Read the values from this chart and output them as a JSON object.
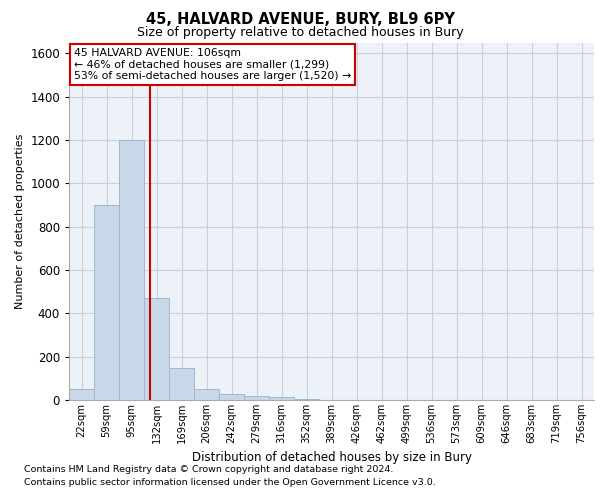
{
  "title1": "45, HALVARD AVENUE, BURY, BL9 6PY",
  "title2": "Size of property relative to detached houses in Bury",
  "xlabel": "Distribution of detached houses by size in Bury",
  "ylabel": "Number of detached properties",
  "bin_labels": [
    "22sqm",
    "59sqm",
    "95sqm",
    "132sqm",
    "169sqm",
    "206sqm",
    "242sqm",
    "279sqm",
    "316sqm",
    "352sqm",
    "389sqm",
    "426sqm",
    "462sqm",
    "499sqm",
    "536sqm",
    "573sqm",
    "609sqm",
    "646sqm",
    "683sqm",
    "719sqm",
    "756sqm"
  ],
  "bar_values": [
    50,
    900,
    1200,
    470,
    150,
    50,
    30,
    18,
    15,
    5,
    0,
    0,
    0,
    0,
    0,
    0,
    0,
    0,
    0,
    0,
    0
  ],
  "bar_color": "#c8d8e8",
  "bar_edge_color": "#a0b8cc",
  "grid_color": "#c8d0dc",
  "bg_color": "#edf2f8",
  "red_line_x": 2.73,
  "annotation_text": "45 HALVARD AVENUE: 106sqm\n← 46% of detached houses are smaller (1,299)\n53% of semi-detached houses are larger (1,520) →",
  "annotation_box_color": "#ffffff",
  "annotation_border_color": "#cc0000",
  "ylim": [
    0,
    1650
  ],
  "yticks": [
    0,
    200,
    400,
    600,
    800,
    1000,
    1200,
    1400,
    1600
  ],
  "footer1": "Contains HM Land Registry data © Crown copyright and database right 2024.",
  "footer2": "Contains public sector information licensed under the Open Government Licence v3.0."
}
